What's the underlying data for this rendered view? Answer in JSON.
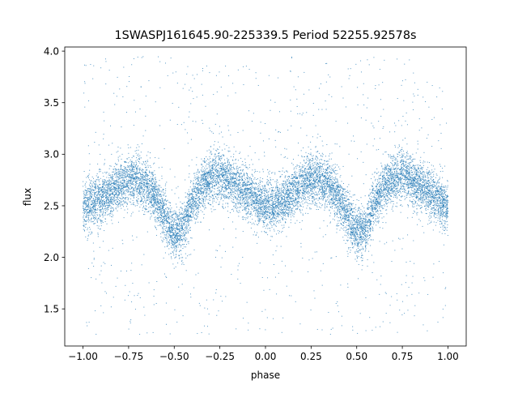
{
  "chart_data": {
    "type": "scatter",
    "title": "1SWASPJ161645.90-225339.5 Period 52255.92578s",
    "xlabel": "phase",
    "ylabel": "flux",
    "xlim": [
      -1.1,
      1.1
    ],
    "ylim": [
      1.14,
      4.04
    ],
    "x_ticks": [
      -1.0,
      -0.75,
      -0.5,
      -0.25,
      0.0,
      0.25,
      0.5,
      0.75,
      1.0
    ],
    "x_tick_labels": [
      "−1.00",
      "−0.75",
      "−0.50",
      "−0.25",
      "0.00",
      "0.25",
      "0.50",
      "0.75",
      "1.00"
    ],
    "y_ticks": [
      1.5,
      2.0,
      2.5,
      3.0,
      3.5,
      4.0
    ],
    "y_tick_labels": [
      "1.5",
      "2.0",
      "2.5",
      "3.0",
      "3.5",
      "4.0"
    ],
    "grid": false,
    "legend": "none",
    "series": [
      {
        "color": "#1f77b4",
        "phase_range": [
          -1.0,
          1.0
        ],
        "approx_point_count": 12000,
        "trend_curve": {
          "x": [
            -1.0,
            -0.95,
            -0.9,
            -0.85,
            -0.8,
            -0.75,
            -0.7,
            -0.65,
            -0.6,
            -0.55,
            -0.5,
            -0.45,
            -0.4,
            -0.35,
            -0.3,
            -0.25,
            -0.2,
            -0.15,
            -0.1,
            -0.05,
            0.0,
            0.05,
            0.1,
            0.15,
            0.2,
            0.25,
            0.3,
            0.35,
            0.4,
            0.45,
            0.5,
            0.55,
            0.6,
            0.65,
            0.7,
            0.75,
            0.8,
            0.85,
            0.9,
            0.95,
            1.0
          ],
          "y": [
            2.47,
            2.53,
            2.58,
            2.64,
            2.7,
            2.75,
            2.76,
            2.7,
            2.58,
            2.4,
            2.22,
            2.3,
            2.52,
            2.68,
            2.77,
            2.8,
            2.76,
            2.69,
            2.62,
            2.55,
            2.5,
            2.5,
            2.55,
            2.62,
            2.7,
            2.76,
            2.76,
            2.7,
            2.58,
            2.4,
            2.24,
            2.3,
            2.52,
            2.68,
            2.77,
            2.8,
            2.76,
            2.69,
            2.62,
            2.55,
            2.47
          ]
        },
        "scatter_sd": 0.12,
        "outlier_fraction": 0.07,
        "outlier_range": [
          1.25,
          3.95
        ]
      }
    ]
  }
}
